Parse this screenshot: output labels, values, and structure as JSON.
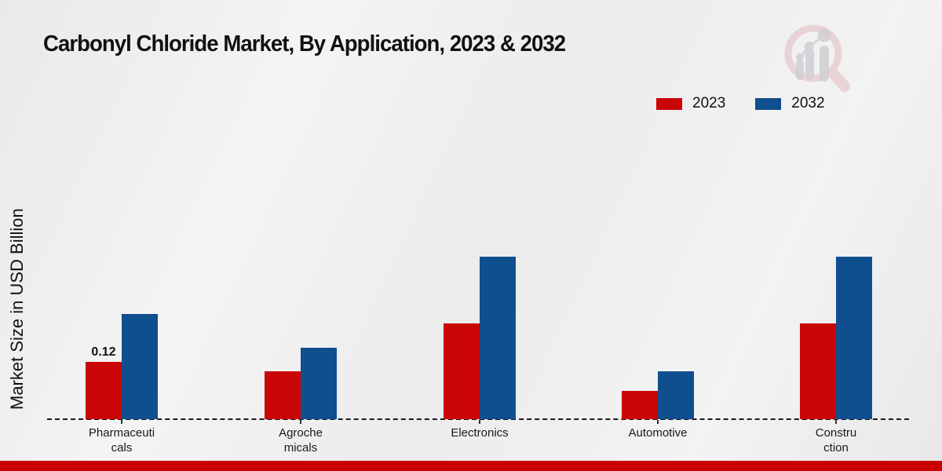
{
  "header": {
    "title": "Carbonyl Chloride Market, By Application, 2023 & 2032"
  },
  "watermark": {
    "icon": "market-research-magnifier-bar-chart-logo"
  },
  "chart_data": {
    "type": "bar",
    "title": "Carbonyl Chloride Market, By Application, 2023 & 2032",
    "xlabel": "",
    "ylabel": "Market Size in USD Billion",
    "categories": [
      "Pharmaceuti\ncals",
      "Agroche\nmicals",
      "Electronics",
      "Automotive",
      "Constru\nction"
    ],
    "series": [
      {
        "name": "2023",
        "color": "#c90505",
        "values": [
          0.12,
          0.1,
          0.2,
          0.06,
          0.2
        ]
      },
      {
        "name": "2032",
        "color": "#104f8e",
        "values": [
          0.22,
          0.15,
          0.34,
          0.1,
          0.34
        ]
      }
    ],
    "annotations": [
      {
        "series": "2023",
        "category_index": 0,
        "text": "0.12"
      }
    ],
    "ylim": [
      0,
      0.37
    ],
    "y_axis_ticks_visible": false,
    "gridlines": false,
    "baseline_style": "dashed",
    "legend_position": "top-right"
  },
  "colors": {
    "series_2023": "#c90505",
    "series_2032": "#104f8e",
    "footer_strip": "#c80000",
    "axis": "#1c1c1c"
  },
  "footer": {
    "strip": ""
  }
}
